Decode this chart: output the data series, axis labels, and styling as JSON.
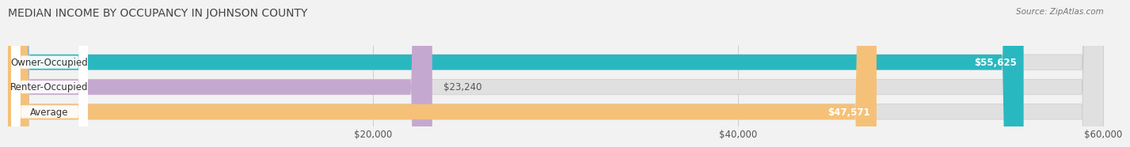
{
  "title": "MEDIAN INCOME BY OCCUPANCY IN JOHNSON COUNTY",
  "source": "Source: ZipAtlas.com",
  "categories": [
    "Owner-Occupied",
    "Renter-Occupied",
    "Average"
  ],
  "values": [
    55625,
    23240,
    47571
  ],
  "bar_colors": [
    "#2ab8c0",
    "#c5a8d0",
    "#f5c178"
  ],
  "value_labels": [
    "$55,625",
    "$23,240",
    "$47,571"
  ],
  "xlim": [
    0,
    60000
  ],
  "xtick_labels": [
    "$20,000",
    "$40,000",
    "$60,000"
  ],
  "xtick_vals": [
    20000,
    40000,
    60000
  ],
  "bg_color": "#f2f2f2",
  "bar_bg_color": "#e0e0e0",
  "title_fontsize": 10,
  "source_fontsize": 7.5,
  "label_fontsize": 8.5,
  "value_fontsize": 8.5
}
